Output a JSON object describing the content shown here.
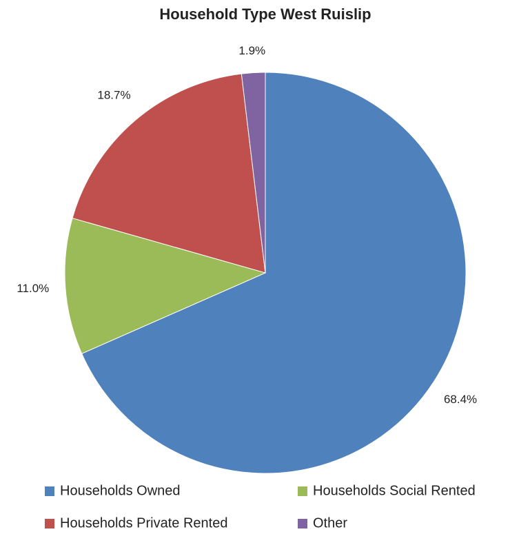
{
  "chart_data": {
    "type": "pie",
    "title": "Household Type West Ruislip",
    "categories": [
      "Households Owned",
      "Households Social Rented",
      "Households Private Rented",
      "Other"
    ],
    "values": [
      68.4,
      11.0,
      18.7,
      1.9
    ],
    "value_labels": [
      "68.4%",
      "11.0%",
      "18.7%",
      "1.9%"
    ],
    "colors": [
      "#4f81bd",
      "#9bbb59",
      "#c0504d",
      "#8064a2"
    ],
    "legend": "bottom"
  }
}
